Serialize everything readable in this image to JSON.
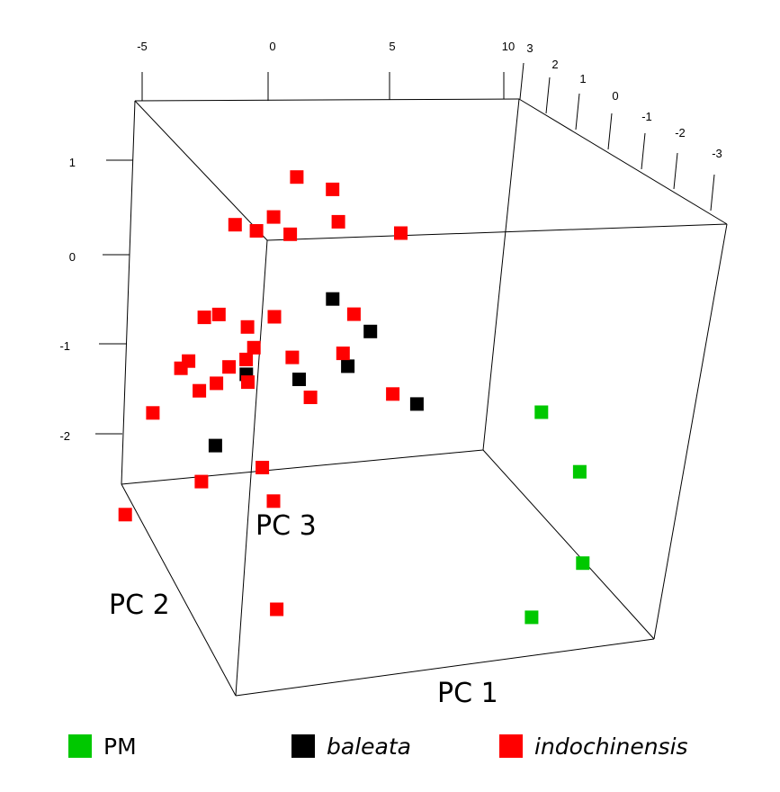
{
  "chart_data": {
    "type": "scatter",
    "projection": "3d",
    "grid": false,
    "legend_placement": "bottom",
    "axes": {
      "x": {
        "label": "PC 1",
        "ticks": [
          "-5",
          "0",
          "5",
          "10"
        ]
      },
      "y": {
        "label": "PC 2",
        "ticks": [
          "3",
          "2",
          "1",
          "0",
          "-1",
          "-2",
          "-3"
        ]
      },
      "z": {
        "label": "PC 3",
        "ticks": [
          "1",
          "0",
          "-1",
          "-2"
        ]
      }
    },
    "series": [
      {
        "name": "PM",
        "color": "#00c800",
        "marker": "square",
        "points": [
          {
            "x": 9.2,
            "y": -2.0,
            "z": -0.65
          },
          {
            "x": 9.8,
            "y": -3.0,
            "z": -1.1
          },
          {
            "x": 9.5,
            "y": -3.5,
            "z": -2.0
          },
          {
            "x": 8.5,
            "y": -2.5,
            "z": -2.8
          }
        ]
      },
      {
        "name": "baleata",
        "color": "#000000",
        "marker": "square",
        "points": [
          {
            "x": 3.0,
            "y": 0.5,
            "z": 0.1
          },
          {
            "x": 4.3,
            "y": 0.2,
            "z": -0.2
          },
          {
            "x": 3.5,
            "y": 0.3,
            "z": -0.6
          },
          {
            "x": 1.8,
            "y": 0.6,
            "z": -0.8
          },
          {
            "x": 5.8,
            "y": -0.3,
            "z": -0.9
          },
          {
            "x": -0.1,
            "y": 0.9,
            "z": -0.8
          },
          {
            "x": -1.2,
            "y": 1.0,
            "z": -1.6
          }
        ]
      },
      {
        "name": "indochinensis",
        "color": "#ff0000",
        "marker": "square",
        "points": [
          {
            "x": 2.1,
            "y": 1.2,
            "z": 1.3
          },
          {
            "x": 3.4,
            "y": 1.0,
            "z": 1.2
          },
          {
            "x": 1.5,
            "y": 1.5,
            "z": 0.8
          },
          {
            "x": 3.9,
            "y": 1.2,
            "z": 0.8
          },
          {
            "x": 0.0,
            "y": 1.6,
            "z": 0.7
          },
          {
            "x": 0.8,
            "y": 1.5,
            "z": 0.65
          },
          {
            "x": 2.0,
            "y": 1.3,
            "z": 0.65
          },
          {
            "x": 6.1,
            "y": 0.8,
            "z": 0.75
          },
          {
            "x": 3.8,
            "y": 0.4,
            "z": -0.05
          },
          {
            "x": 0.9,
            "y": 0.8,
            "z": -0.15
          },
          {
            "x": -1.0,
            "y": 1.2,
            "z": -0.2
          },
          {
            "x": -1.5,
            "y": 1.3,
            "z": -0.25
          },
          {
            "x": 0.0,
            "y": 1.0,
            "z": -0.3
          },
          {
            "x": 3.5,
            "y": 0.5,
            "z": -0.5
          },
          {
            "x": 0.4,
            "y": 1.1,
            "z": -0.55
          },
          {
            "x": 1.7,
            "y": 0.8,
            "z": -0.6
          },
          {
            "x": 0.2,
            "y": 1.2,
            "z": -0.7
          },
          {
            "x": -2.0,
            "y": 1.4,
            "z": -0.75
          },
          {
            "x": -2.2,
            "y": 1.5,
            "z": -0.85
          },
          {
            "x": -0.4,
            "y": 1.3,
            "z": -0.8
          },
          {
            "x": 5.1,
            "y": 0.0,
            "z": -0.85
          },
          {
            "x": 0.3,
            "y": 1.2,
            "z": -0.95
          },
          {
            "x": -0.8,
            "y": 1.4,
            "z": -1.0
          },
          {
            "x": 2.3,
            "y": 0.6,
            "z": -1.0
          },
          {
            "x": -1.4,
            "y": 1.5,
            "z": -1.1
          },
          {
            "x": -3.0,
            "y": 1.8,
            "z": -1.4
          },
          {
            "x": 0.8,
            "y": 1.0,
            "z": -1.85
          },
          {
            "x": -1.2,
            "y": 1.5,
            "z": -2.1
          },
          {
            "x": 1.2,
            "y": 0.9,
            "z": -2.2
          },
          {
            "x": -3.6,
            "y": 2.2,
            "z": -2.6
          },
          {
            "x": 0.5,
            "y": 0.0,
            "z": -3.2
          }
        ]
      }
    ]
  },
  "legend": [
    {
      "label": "PM",
      "color": "#00c800",
      "italic": false
    },
    {
      "label": "baleata",
      "color": "#000000",
      "italic": true
    },
    {
      "label": "indochinensis",
      "color": "#ff0000",
      "italic": true
    }
  ]
}
